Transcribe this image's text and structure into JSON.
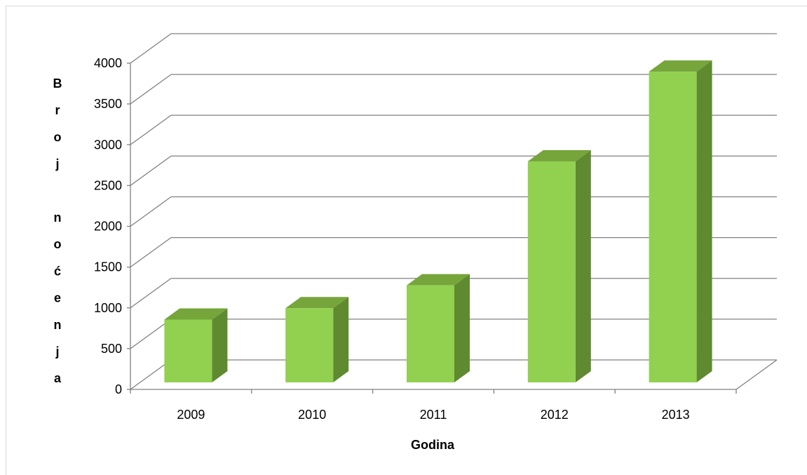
{
  "chart_data": {
    "type": "bar",
    "style": "3d-column",
    "categories": [
      "2009",
      "2010",
      "2011",
      "2012",
      "2013"
    ],
    "values": [
      770,
      910,
      1190,
      2710,
      3810
    ],
    "xlabel": "Godina",
    "ylabel": "Broj noćenja",
    "ylabel_letters": [
      "B",
      "r",
      "o",
      "j",
      "",
      "n",
      "o",
      "ć",
      "e",
      "n",
      "j",
      "a"
    ],
    "ylim": [
      0,
      4000
    ],
    "yticks": [
      "0",
      "500",
      "1000",
      "1500",
      "2000",
      "2500",
      "3000",
      "3500",
      "4000"
    ],
    "grid": true,
    "legend": "none",
    "colors": {
      "bar_front": "#92d050",
      "bar_side": "#5f8a30",
      "bar_top": "#76a53c",
      "grid": "#808080"
    }
  }
}
